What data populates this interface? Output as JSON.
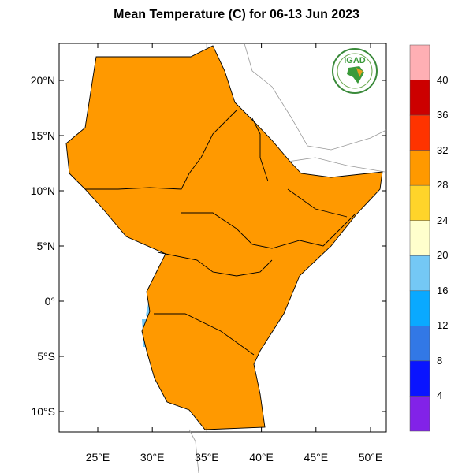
{
  "title": "Mean Temperature (C) for 06-13 Jun 2023",
  "logo_text": "IGAD",
  "lat_labels": [
    "20°N",
    "15°N",
    "10°N",
    "5°N",
    "0°",
    "5°S",
    "10°S"
  ],
  "lon_labels": [
    "25°E",
    "30°E",
    "35°E",
    "40°E",
    "45°E",
    "50°E"
  ],
  "colorbar": {
    "labels": [
      "40",
      "36",
      "32",
      "28",
      "24",
      "20",
      "16",
      "12",
      "8",
      "4"
    ],
    "colors": [
      "#ffafb4",
      "#cc0000",
      "#ff3300",
      "#ff9900",
      "#ffd42a",
      "#ffffcc",
      "#74c8f5",
      "#0aa9ff",
      "#3278e6",
      "#0a14ff",
      "#8222e8"
    ]
  }
}
